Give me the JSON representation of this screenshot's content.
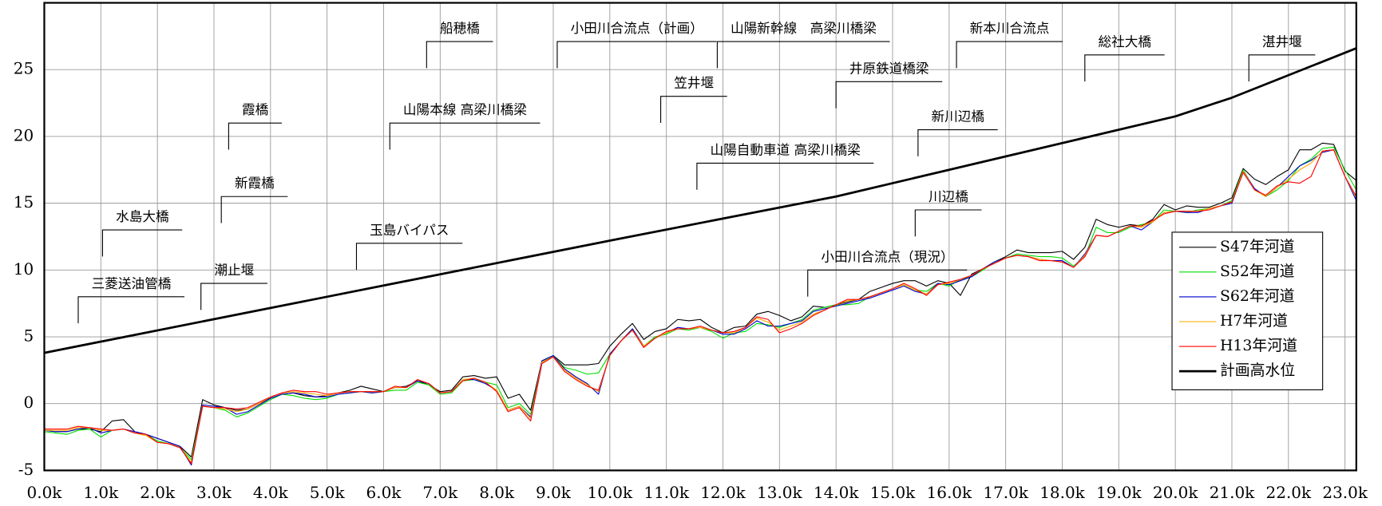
{
  "chart_data": {
    "type": "line",
    "xlim": [
      0,
      23.2
    ],
    "ylim": [
      -5,
      30
    ],
    "xticks": [
      {
        "value": 0,
        "label": "0.0k"
      },
      {
        "value": 1,
        "label": "1.0k"
      },
      {
        "value": 2,
        "label": "2.0k"
      },
      {
        "value": 3,
        "label": "3.0k"
      },
      {
        "value": 4,
        "label": "4.0k"
      },
      {
        "value": 5,
        "label": "5.0k"
      },
      {
        "value": 6,
        "label": "6.0k"
      },
      {
        "value": 7,
        "label": "7.0k"
      },
      {
        "value": 8,
        "label": "8.0k"
      },
      {
        "value": 9,
        "label": "9.0k"
      },
      {
        "value": 10,
        "label": "10.0k"
      },
      {
        "value": 11,
        "label": "11.0k"
      },
      {
        "value": 12,
        "label": "12.0k"
      },
      {
        "value": 13,
        "label": "13.0k"
      },
      {
        "value": 14,
        "label": "14.0k"
      },
      {
        "value": 15,
        "label": "15.0k"
      },
      {
        "value": 16,
        "label": "16.0k"
      },
      {
        "value": 17,
        "label": "17.0k"
      },
      {
        "value": 18,
        "label": "18.0k"
      },
      {
        "value": 19,
        "label": "19.0k"
      },
      {
        "value": 20,
        "label": "20.0k"
      },
      {
        "value": 21,
        "label": "21.0k"
      },
      {
        "value": 22,
        "label": "22.0k"
      },
      {
        "value": 23,
        "label": "23.0k"
      }
    ],
    "yticks": [
      -5,
      0,
      5,
      10,
      15,
      20,
      25
    ],
    "grid": true,
    "legend": "lower right",
    "x": [
      0,
      0.2,
      0.4,
      0.6,
      0.8,
      1,
      1.2,
      1.4,
      1.6,
      1.8,
      2,
      2.2,
      2.4,
      2.6,
      2.8,
      3,
      3.2,
      3.4,
      3.6,
      3.8,
      4,
      4.2,
      4.4,
      4.6,
      4.8,
      5,
      5.2,
      5.4,
      5.6,
      5.8,
      6,
      6.2,
      6.4,
      6.6,
      6.8,
      7,
      7.2,
      7.4,
      7.6,
      7.8,
      8,
      8.2,
      8.4,
      8.6,
      8.8,
      9,
      9.2,
      9.4,
      9.6,
      9.8,
      10,
      10.2,
      10.4,
      10.6,
      10.8,
      11,
      11.2,
      11.4,
      11.6,
      11.8,
      12,
      12.2,
      12.4,
      12.6,
      12.8,
      13,
      13.2,
      13.4,
      13.6,
      13.8,
      14,
      14.2,
      14.4,
      14.6,
      14.8,
      15,
      15.2,
      15.4,
      15.6,
      15.8,
      16,
      16.2,
      16.4,
      16.6,
      16.8,
      17,
      17.2,
      17.4,
      17.6,
      17.8,
      18,
      18.2,
      18.4,
      18.6,
      18.8,
      19,
      19.2,
      19.4,
      19.6,
      19.8,
      20,
      20.2,
      20.4,
      20.6,
      20.8,
      21,
      21.2,
      21.4,
      21.6,
      21.8,
      22,
      22.2,
      22.4,
      22.6,
      22.8,
      23,
      23.2
    ],
    "series": [
      {
        "name": "S47年河道",
        "color": "#000000",
        "width": 1,
        "values": [
          -2.0,
          -2.1,
          -2.1,
          -1.9,
          -1.9,
          -2.1,
          -1.3,
          -1.2,
          -2.1,
          -2.3,
          -2.6,
          -2.9,
          -3.2,
          -4.0,
          0.3,
          -0.1,
          -0.3,
          -0.5,
          -0.4,
          0.0,
          0.4,
          0.7,
          0.8,
          0.6,
          0.5,
          0.6,
          0.8,
          1.0,
          1.3,
          1.1,
          0.9,
          1.2,
          1.3,
          1.7,
          1.4,
          0.9,
          1.0,
          2.0,
          2.1,
          1.9,
          2.0,
          0.4,
          0.7,
          -0.5,
          3.2,
          3.6,
          2.9,
          2.9,
          2.9,
          3.0,
          4.3,
          5.2,
          6.0,
          4.8,
          5.4,
          5.6,
          6.3,
          6.2,
          6.3,
          5.7,
          5.3,
          5.7,
          5.8,
          6.7,
          6.9,
          6.6,
          6.2,
          6.5,
          7.3,
          7.2,
          7.4,
          7.6,
          7.8,
          8.4,
          8.7,
          9.0,
          9.2,
          9.2,
          8.8,
          9.2,
          9.0,
          8.1,
          9.7,
          10.1,
          10.6,
          11.0,
          11.5,
          11.3,
          11.3,
          11.3,
          11.4,
          10.8,
          11.7,
          13.8,
          13.4,
          13.2,
          13.4,
          13.3,
          13.8,
          14.9,
          14.5,
          14.8,
          14.7,
          14.7,
          15.0,
          15.4,
          17.6,
          16.8,
          16.4,
          17.0,
          17.5,
          19.0,
          19.0,
          19.5,
          19.4,
          17.4,
          16.7
        ]
      },
      {
        "name": "S52年河道",
        "color": "#00dd00",
        "width": 1,
        "values": [
          -2.1,
          -2.2,
          -2.3,
          -2.0,
          -1.9,
          -2.5,
          -2.0,
          -1.9,
          -2.2,
          -2.3,
          -2.8,
          -3.0,
          -3.3,
          -4.2,
          -0.2,
          -0.3,
          -0.5,
          -1.0,
          -0.7,
          -0.2,
          0.3,
          0.7,
          0.6,
          0.4,
          0.3,
          0.4,
          0.7,
          0.8,
          0.9,
          0.8,
          0.9,
          1.0,
          1.0,
          1.6,
          1.4,
          0.7,
          0.8,
          1.7,
          1.8,
          1.6,
          1.4,
          -0.3,
          0.0,
          -0.8,
          3.1,
          3.6,
          2.7,
          2.5,
          2.2,
          2.3,
          3.7,
          4.7,
          5.6,
          4.3,
          5.0,
          5.2,
          5.6,
          5.5,
          5.7,
          5.4,
          4.9,
          5.3,
          5.4,
          6.0,
          5.9,
          5.7,
          6.0,
          6.3,
          7.0,
          7.2,
          7.4,
          7.4,
          7.5,
          8.0,
          8.3,
          8.6,
          8.9,
          8.5,
          8.4,
          9.0,
          8.8,
          9.3,
          9.5,
          10.0,
          10.6,
          10.9,
          11.2,
          11.1,
          11.0,
          11.0,
          10.9,
          10.3,
          11.0,
          13.2,
          12.8,
          12.8,
          13.2,
          13.4,
          13.6,
          14.5,
          14.4,
          14.3,
          14.5,
          14.6,
          14.8,
          15.2,
          17.5,
          16.0,
          15.5,
          16.0,
          16.7,
          17.8,
          18.3,
          19.1,
          19.2,
          17.5,
          16.0
        ]
      },
      {
        "name": "S62年河道",
        "color": "#0000cc",
        "width": 1,
        "values": [
          -2.0,
          -2.1,
          -2.1,
          -1.9,
          -1.8,
          -2.2,
          -2.0,
          -1.9,
          -2.1,
          -2.3,
          -2.6,
          -2.9,
          -3.2,
          -4.6,
          -0.1,
          -0.2,
          -0.3,
          -0.8,
          -0.6,
          -0.1,
          0.4,
          0.7,
          0.8,
          0.7,
          0.5,
          0.5,
          0.7,
          0.8,
          0.9,
          0.8,
          0.9,
          1.2,
          1.2,
          1.7,
          1.5,
          0.8,
          0.9,
          1.8,
          1.8,
          1.5,
          1.0,
          -0.5,
          -0.2,
          -1.0,
          3.2,
          3.6,
          2.6,
          2.0,
          1.5,
          0.7,
          3.7,
          4.7,
          5.6,
          4.3,
          4.9,
          5.3,
          5.7,
          5.6,
          5.7,
          5.5,
          5.2,
          5.2,
          5.6,
          6.2,
          5.8,
          5.8,
          6.0,
          6.2,
          6.9,
          7.1,
          7.3,
          7.5,
          7.7,
          7.9,
          8.2,
          8.5,
          8.8,
          8.4,
          8.2,
          9.0,
          8.9,
          9.2,
          9.5,
          10.1,
          10.6,
          10.9,
          11.1,
          11.0,
          10.8,
          10.7,
          10.7,
          10.2,
          11.2,
          12.6,
          12.5,
          12.9,
          13.3,
          13.0,
          13.6,
          14.3,
          14.4,
          14.3,
          14.3,
          14.6,
          14.8,
          15.0,
          17.4,
          16.1,
          15.5,
          16.2,
          17.0,
          17.8,
          18.2,
          18.8,
          19.0,
          17.0,
          15.2
        ]
      },
      {
        "name": "H7年河道",
        "color": "#ffaa00",
        "width": 1,
        "values": [
          -2.0,
          -2.0,
          -2.0,
          -1.8,
          -1.8,
          -2.0,
          -2.0,
          -1.9,
          -2.2,
          -2.4,
          -2.9,
          -3.0,
          -3.3,
          -4.4,
          -0.2,
          -0.3,
          -0.4,
          -0.6,
          -0.4,
          0.0,
          0.5,
          0.8,
          0.9,
          0.8,
          0.7,
          0.6,
          0.8,
          0.9,
          0.9,
          0.9,
          0.9,
          1.2,
          1.2,
          1.8,
          1.5,
          0.8,
          0.9,
          1.8,
          1.9,
          1.6,
          1.0,
          -0.5,
          -0.2,
          -1.1,
          3.1,
          3.5,
          2.5,
          1.9,
          1.4,
          0.9,
          3.6,
          4.7,
          5.5,
          4.3,
          4.9,
          5.3,
          5.6,
          5.6,
          5.7,
          5.5,
          5.3,
          5.3,
          5.7,
          6.4,
          6.1,
          5.5,
          5.8,
          6.1,
          6.7,
          7.0,
          7.4,
          7.7,
          7.8,
          8.0,
          8.3,
          8.6,
          8.9,
          8.5,
          8.2,
          8.9,
          9.0,
          9.3,
          9.6,
          10.1,
          10.5,
          10.9,
          11.1,
          11.0,
          10.8,
          10.7,
          10.6,
          10.2,
          11.1,
          12.6,
          12.5,
          12.9,
          13.3,
          13.2,
          13.6,
          14.3,
          14.4,
          14.4,
          14.4,
          14.6,
          14.8,
          15.1,
          17.4,
          16.0,
          15.5,
          16.2,
          16.8,
          17.5,
          18.0,
          18.9,
          19.0,
          17.0,
          15.4
        ]
      },
      {
        "name": "H13年河道",
        "color": "#ff0000",
        "width": 1,
        "values": [
          -1.9,
          -1.9,
          -1.9,
          -1.7,
          -1.8,
          -1.9,
          -2.0,
          -1.9,
          -2.2,
          -2.3,
          -2.9,
          -3.0,
          -3.3,
          -4.5,
          -0.2,
          -0.3,
          -0.3,
          -0.4,
          -0.3,
          0.1,
          0.5,
          0.8,
          1.0,
          0.9,
          0.9,
          0.7,
          0.8,
          0.9,
          0.9,
          0.9,
          0.9,
          1.3,
          1.2,
          1.8,
          1.5,
          0.8,
          0.9,
          1.7,
          1.9,
          1.6,
          0.9,
          -0.6,
          -0.3,
          -1.3,
          3.0,
          3.5,
          2.4,
          1.8,
          1.3,
          1.0,
          3.6,
          4.7,
          5.5,
          4.2,
          4.9,
          5.4,
          5.6,
          5.6,
          5.8,
          5.5,
          5.3,
          5.4,
          5.7,
          6.5,
          6.3,
          5.3,
          5.6,
          6.0,
          6.6,
          7.0,
          7.4,
          7.8,
          7.8,
          8.0,
          8.3,
          8.6,
          9.0,
          8.6,
          8.1,
          8.9,
          9.1,
          9.3,
          9.6,
          10.1,
          10.5,
          10.9,
          11.1,
          11.0,
          10.7,
          10.7,
          10.6,
          10.2,
          11.0,
          12.6,
          12.5,
          12.9,
          13.3,
          13.3,
          13.7,
          14.2,
          14.4,
          14.4,
          14.4,
          14.5,
          14.8,
          15.1,
          17.3,
          16.0,
          15.6,
          16.3,
          16.6,
          16.5,
          17.0,
          18.9,
          19.0,
          17.0,
          15.5
        ]
      },
      {
        "name": "計画高水位",
        "color": "#000000",
        "width": 2.5,
        "x": [
          0,
          5,
          10,
          14,
          16,
          20,
          21,
          23.2
        ],
        "values": [
          3.8,
          8.0,
          12.2,
          15.5,
          17.5,
          21.5,
          22.9,
          26.6
        ]
      }
    ],
    "annotations": [
      {
        "text": "三菱送油管橋",
        "x": 0.6,
        "y": 8.0
      },
      {
        "text": "水島大橋",
        "x": 1.03,
        "y": 13.0
      },
      {
        "text": "潮止堰",
        "x": 2.77,
        "y": 9.0
      },
      {
        "text": "新霞橋",
        "x": 3.13,
        "y": 15.5
      },
      {
        "text": "霞橋",
        "x": 3.26,
        "y": 21.0
      },
      {
        "text": "玉島バイパス",
        "x": 5.52,
        "y": 12.0
      },
      {
        "text": "山陽本線 高梁川橋梁",
        "x": 6.11,
        "y": 21.0
      },
      {
        "text": "船穂橋",
        "x": 6.76,
        "y": 27.1
      },
      {
        "text": "小田川合流点（計画）",
        "x": 9.07,
        "y": 27.1
      },
      {
        "text": "笠井堰",
        "x": 10.9,
        "y": 23.0
      },
      {
        "text": "山陽新幹線　高梁川橋梁",
        "x": 11.9,
        "y": 27.1
      },
      {
        "text": "山陽自動車道 高梁川橋梁",
        "x": 11.54,
        "y": 18.0
      },
      {
        "text": "井原鉄道橋梁",
        "x": 14.0,
        "y": 24.1
      },
      {
        "text": "新本川合流点",
        "x": 16.13,
        "y": 27.1
      },
      {
        "text": "新川辺橋",
        "x": 15.45,
        "y": 20.5
      },
      {
        "text": "川辺橋",
        "x": 15.4,
        "y": 14.5
      },
      {
        "text": "小田川合流点（現況）",
        "x": 13.5,
        "y": 10.0
      },
      {
        "text": "総社大橋",
        "x": 18.4,
        "y": 26.1
      },
      {
        "text": "湛井堰",
        "x": 21.3,
        "y": 26.1
      }
    ]
  }
}
